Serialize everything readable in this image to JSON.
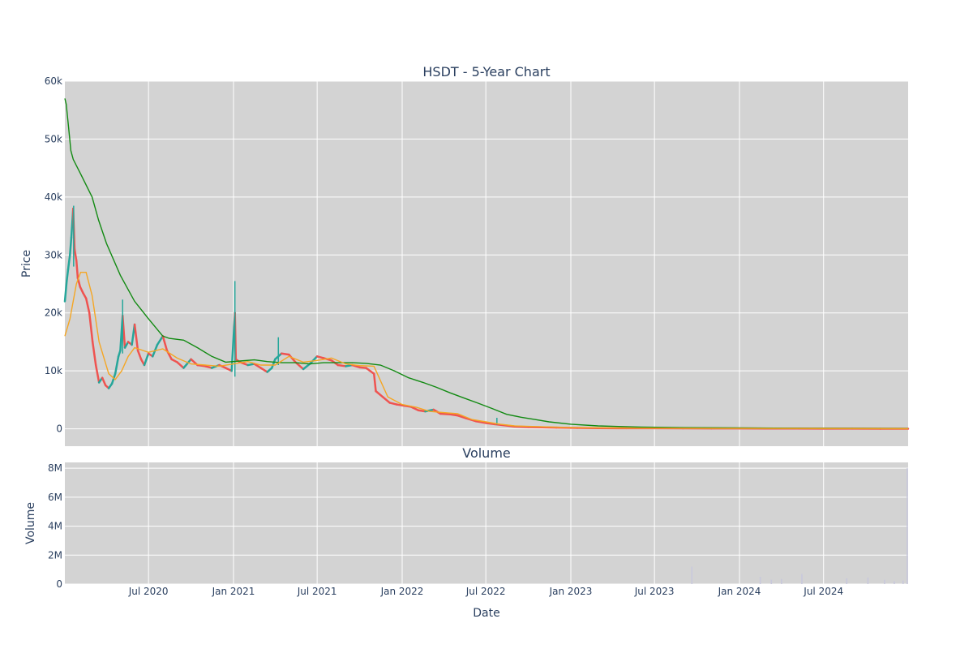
{
  "chart_data": {
    "type": "candlestick",
    "title": "HSDT - 5-Year Chart",
    "price_panel": {
      "ylabel": "Price",
      "ylim": [
        -3000,
        60000
      ],
      "y_ticks": [
        0,
        10000,
        20000,
        30000,
        40000,
        50000,
        60000
      ],
      "y_tick_labels": [
        "0",
        "10k",
        "20k",
        "30k",
        "40k",
        "50k",
        "60k"
      ],
      "grid": true,
      "price_path": [
        [
          "2020-01-02",
          22000
        ],
        [
          "2020-01-06",
          25500
        ],
        [
          "2020-01-09",
          27500
        ],
        [
          "2020-01-13",
          30000
        ],
        [
          "2020-01-16",
          33000
        ],
        [
          "2020-01-20",
          38000
        ],
        [
          "2020-01-23",
          31000
        ],
        [
          "2020-01-27",
          29000
        ],
        [
          "2020-01-30",
          26000
        ],
        [
          "2020-02-04",
          24500
        ],
        [
          "2020-02-10",
          23500
        ],
        [
          "2020-02-17",
          22500
        ],
        [
          "2020-02-24",
          20000
        ],
        [
          "2020-03-02",
          15000
        ],
        [
          "2020-03-09",
          11000
        ],
        [
          "2020-03-16",
          8000
        ],
        [
          "2020-03-23",
          8800
        ],
        [
          "2020-03-30",
          7500
        ],
        [
          "2020-04-06",
          7000
        ],
        [
          "2020-04-13",
          7800
        ],
        [
          "2020-04-20",
          9500
        ],
        [
          "2020-04-27",
          12500
        ],
        [
          "2020-05-01",
          13500
        ],
        [
          "2020-05-06",
          19500
        ],
        [
          "2020-05-11",
          14000
        ],
        [
          "2020-05-18",
          15000
        ],
        [
          "2020-05-26",
          14500
        ],
        [
          "2020-06-01",
          18000
        ],
        [
          "2020-06-08",
          13500
        ],
        [
          "2020-06-15",
          12000
        ],
        [
          "2020-06-22",
          11000
        ],
        [
          "2020-07-01",
          13000
        ],
        [
          "2020-07-10",
          12500
        ],
        [
          "2020-07-20",
          14500
        ],
        [
          "2020-08-01",
          16000
        ],
        [
          "2020-08-10",
          13500
        ],
        [
          "2020-08-20",
          12000
        ],
        [
          "2020-09-01",
          11500
        ],
        [
          "2020-09-15",
          10500
        ],
        [
          "2020-10-01",
          12000
        ],
        [
          "2020-10-15",
          11000
        ],
        [
          "2020-11-01",
          10800
        ],
        [
          "2020-11-15",
          10500
        ],
        [
          "2020-12-01",
          11000
        ],
        [
          "2020-12-15",
          10500
        ],
        [
          "2020-12-28",
          10000
        ],
        [
          "2021-01-04",
          20000
        ],
        [
          "2021-01-06",
          12000
        ],
        [
          "2021-01-15",
          11500
        ],
        [
          "2021-02-01",
          11000
        ],
        [
          "2021-02-15",
          11200
        ],
        [
          "2021-03-01",
          10500
        ],
        [
          "2021-03-15",
          9800
        ],
        [
          "2021-03-25",
          10500
        ],
        [
          "2021-04-01",
          12000
        ],
        [
          "2021-04-15",
          13000
        ],
        [
          "2021-05-01",
          12800
        ],
        [
          "2021-05-15",
          11500
        ],
        [
          "2021-06-01",
          10300
        ],
        [
          "2021-06-15",
          11200
        ],
        [
          "2021-07-01",
          12500
        ],
        [
          "2021-07-15",
          12200
        ],
        [
          "2021-08-01",
          11800
        ],
        [
          "2021-08-15",
          11000
        ],
        [
          "2021-09-01",
          10800
        ],
        [
          "2021-09-15",
          11000
        ],
        [
          "2021-10-01",
          10600
        ],
        [
          "2021-10-15",
          10500
        ],
        [
          "2021-11-01",
          9500
        ],
        [
          "2021-11-05",
          6500
        ],
        [
          "2021-11-20",
          5500
        ],
        [
          "2021-12-05",
          4500
        ],
        [
          "2021-12-20",
          4200
        ],
        [
          "2022-01-05",
          4000
        ],
        [
          "2022-01-20",
          3800
        ],
        [
          "2022-02-05",
          3200
        ],
        [
          "2022-02-20",
          3000
        ],
        [
          "2022-03-10",
          3300
        ],
        [
          "2022-03-25",
          2600
        ],
        [
          "2022-04-15",
          2500
        ],
        [
          "2022-05-01",
          2300
        ],
        [
          "2022-05-20",
          1800
        ],
        [
          "2022-06-10",
          1300
        ],
        [
          "2022-07-01",
          1000
        ],
        [
          "2022-07-20",
          800
        ],
        [
          "2022-08-10",
          600
        ],
        [
          "2022-09-01",
          400
        ],
        [
          "2022-10-01",
          300
        ],
        [
          "2022-11-01",
          250
        ],
        [
          "2022-12-01",
          200
        ],
        [
          "2023-01-15",
          150
        ],
        [
          "2023-03-01",
          120
        ],
        [
          "2023-05-01",
          100
        ],
        [
          "2023-07-01",
          90
        ],
        [
          "2023-09-01",
          80
        ],
        [
          "2023-11-01",
          70
        ],
        [
          "2024-01-01",
          60
        ],
        [
          "2024-03-01",
          50
        ],
        [
          "2024-05-01",
          40
        ],
        [
          "2024-07-01",
          30
        ],
        [
          "2024-09-01",
          20
        ],
        [
          "2024-11-01",
          10
        ],
        [
          "2024-12-31",
          5
        ]
      ],
      "ma_short": [
        [
          "2020-01-02",
          16000
        ],
        [
          "2020-01-13",
          19000
        ],
        [
          "2020-01-27",
          25000
        ],
        [
          "2020-02-05",
          27000
        ],
        [
          "2020-02-17",
          27000
        ],
        [
          "2020-03-01",
          23000
        ],
        [
          "2020-03-16",
          15000
        ],
        [
          "2020-04-06",
          9500
        ],
        [
          "2020-04-20",
          8500
        ],
        [
          "2020-05-04",
          10000
        ],
        [
          "2020-05-18",
          12500
        ],
        [
          "2020-06-01",
          14000
        ],
        [
          "2020-07-01",
          13200
        ],
        [
          "2020-08-01",
          13800
        ],
        [
          "2020-09-01",
          12200
        ],
        [
          "2020-10-01",
          11200
        ],
        [
          "2020-11-01",
          11000
        ],
        [
          "2020-12-01",
          10800
        ],
        [
          "2021-01-01",
          11200
        ],
        [
          "2021-02-01",
          11600
        ],
        [
          "2021-03-01",
          11000
        ],
        [
          "2021-04-01",
          11000
        ],
        [
          "2021-05-01",
          12500
        ],
        [
          "2021-06-01",
          11500
        ],
        [
          "2021-07-01",
          11800
        ],
        [
          "2021-08-01",
          12200
        ],
        [
          "2021-09-01",
          11200
        ],
        [
          "2021-10-01",
          10900
        ],
        [
          "2021-11-01",
          10800
        ],
        [
          "2021-12-01",
          5500
        ],
        [
          "2022-01-01",
          4200
        ],
        [
          "2022-02-01",
          3700
        ],
        [
          "2022-03-01",
          3000
        ],
        [
          "2022-04-01",
          2800
        ],
        [
          "2022-05-01",
          2600
        ],
        [
          "2022-06-01",
          1600
        ],
        [
          "2022-07-01",
          1200
        ],
        [
          "2022-08-01",
          800
        ],
        [
          "2022-09-01",
          500
        ],
        [
          "2022-11-01",
          350
        ],
        [
          "2023-01-01",
          200
        ],
        [
          "2023-06-01",
          120
        ],
        [
          "2024-01-01",
          70
        ],
        [
          "2024-12-31",
          10
        ]
      ],
      "ma_long": [
        [
          "2020-01-02",
          57000
        ],
        [
          "2020-01-05",
          56000
        ],
        [
          "2020-01-10",
          52000
        ],
        [
          "2020-01-15",
          48000
        ],
        [
          "2020-01-20",
          46500
        ],
        [
          "2020-02-05",
          44000
        ],
        [
          "2020-03-01",
          40000
        ],
        [
          "2020-03-15",
          36000
        ],
        [
          "2020-04-01",
          32000
        ],
        [
          "2020-05-01",
          26500
        ],
        [
          "2020-06-01",
          22000
        ],
        [
          "2020-07-01",
          19000
        ],
        [
          "2020-08-01",
          16000
        ],
        [
          "2020-08-15",
          15600
        ],
        [
          "2020-09-15",
          15300
        ],
        [
          "2020-10-15",
          14000
        ],
        [
          "2020-11-15",
          12500
        ],
        [
          "2020-12-15",
          11500
        ],
        [
          "2021-01-15",
          11700
        ],
        [
          "2021-02-15",
          11900
        ],
        [
          "2021-03-15",
          11600
        ],
        [
          "2021-04-15",
          11400
        ],
        [
          "2021-05-15",
          11400
        ],
        [
          "2021-06-15",
          11200
        ],
        [
          "2021-07-15",
          11400
        ],
        [
          "2021-08-15",
          11400
        ],
        [
          "2021-09-15",
          11400
        ],
        [
          "2021-10-15",
          11300
        ],
        [
          "2021-11-15",
          11000
        ],
        [
          "2021-12-15",
          10000
        ],
        [
          "2022-01-15",
          8800
        ],
        [
          "2022-02-15",
          8000
        ],
        [
          "2022-03-15",
          7200
        ],
        [
          "2022-04-15",
          6200
        ],
        [
          "2022-05-15",
          5300
        ],
        [
          "2022-06-15",
          4400
        ],
        [
          "2022-07-15",
          3500
        ],
        [
          "2022-08-15",
          2500
        ],
        [
          "2022-09-15",
          2000
        ],
        [
          "2022-10-15",
          1600
        ],
        [
          "2022-11-15",
          1200
        ],
        [
          "2023-01-01",
          800
        ],
        [
          "2023-03-01",
          500
        ],
        [
          "2023-06-01",
          300
        ],
        [
          "2023-09-01",
          200
        ],
        [
          "2024-01-01",
          150
        ],
        [
          "2024-06-01",
          100
        ],
        [
          "2024-12-31",
          50
        ]
      ],
      "spikes": [
        [
          "2021-01-04",
          25500,
          9000
        ],
        [
          "2020-01-21",
          38500,
          28000
        ],
        [
          "2020-05-06",
          22300,
          13000
        ],
        [
          "2021-04-08",
          15800,
          11000
        ],
        [
          "2022-07-25",
          1900,
          700
        ]
      ]
    },
    "volume_panel": {
      "title": "Volume",
      "ylabel": "Volume",
      "xlabel": "Date",
      "ylim": [
        0,
        8400000
      ],
      "y_ticks": [
        0,
        2000000,
        4000000,
        6000000,
        8000000
      ],
      "y_tick_labels": [
        "0",
        "2M",
        "4M",
        "6M",
        "8M"
      ],
      "bars": [
        [
          "2023-09-20",
          1200000
        ],
        [
          "2024-02-15",
          500000
        ],
        [
          "2024-03-10",
          300000
        ],
        [
          "2024-04-01",
          350000
        ],
        [
          "2024-05-15",
          700000
        ],
        [
          "2024-08-20",
          400000
        ],
        [
          "2024-10-05",
          450000
        ],
        [
          "2024-11-10",
          300000
        ],
        [
          "2024-12-01",
          200000
        ],
        [
          "2024-12-20",
          250000
        ],
        [
          "2024-12-29",
          8000000
        ]
      ]
    },
    "x_axis": {
      "xlim": [
        "2020-01-02",
        "2024-12-31"
      ],
      "ticks": [
        "2020-07-01",
        "2021-01-01",
        "2021-07-01",
        "2022-01-01",
        "2022-07-01",
        "2023-01-01",
        "2023-07-01",
        "2024-01-01",
        "2024-07-01"
      ],
      "tick_labels": [
        "Jul 2020",
        "Jan 2021",
        "Jul 2021",
        "Jan 2022",
        "Jul 2022",
        "Jan 2023",
        "Jul 2023",
        "Jan 2024",
        "Jul 2024"
      ]
    },
    "colors": {
      "up": "#26a69a",
      "down": "#ef5350",
      "ma_short": "#f5a623",
      "ma_long": "#128a12",
      "volume": "#c8c8dc",
      "plot_bg": "#d3d3d3",
      "grid": "#ffffff"
    }
  }
}
